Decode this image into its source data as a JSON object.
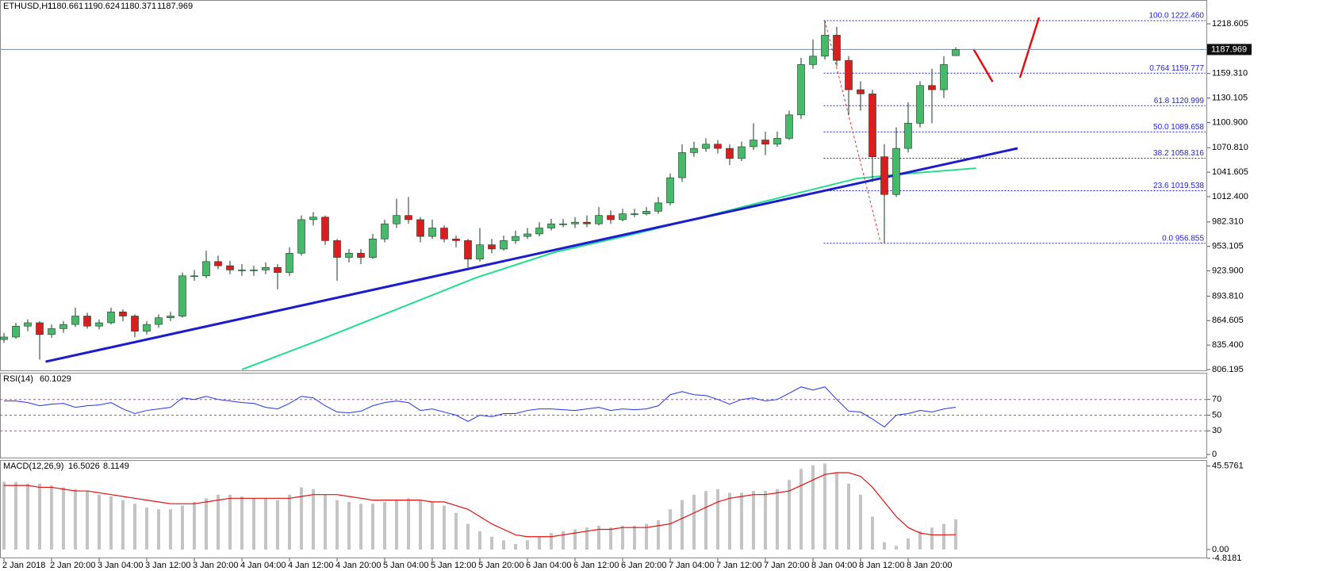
{
  "chart_data": [
    {
      "type": "candlestick",
      "title": "ETHUSD,H1",
      "candles": [
        [
          842,
          850,
          838,
          845
        ],
        [
          845,
          862,
          843,
          858
        ],
        [
          858,
          866,
          852,
          862
        ],
        [
          862,
          864,
          818,
          848
        ],
        [
          848,
          860,
          844,
          855
        ],
        [
          855,
          864,
          850,
          860
        ],
        [
          860,
          880,
          857,
          870
        ],
        [
          870,
          874,
          855,
          858
        ],
        [
          858,
          866,
          854,
          862
        ],
        [
          862,
          880,
          860,
          875
        ],
        [
          875,
          878,
          864,
          870
        ],
        [
          870,
          872,
          845,
          852
        ],
        [
          852,
          864,
          848,
          860
        ],
        [
          860,
          872,
          856,
          868
        ],
        [
          868,
          875,
          864,
          870
        ],
        [
          870,
          922,
          868,
          918
        ],
        [
          918,
          925,
          912,
          918
        ],
        [
          918,
          948,
          915,
          935
        ],
        [
          935,
          942,
          926,
          930
        ],
        [
          930,
          936,
          920,
          925
        ],
        [
          925,
          932,
          918,
          925
        ],
        [
          925,
          930,
          918,
          925
        ],
        [
          925,
          934,
          920,
          928
        ],
        [
          928,
          932,
          902,
          922
        ],
        [
          922,
          952,
          918,
          945
        ],
        [
          945,
          990,
          942,
          985
        ],
        [
          985,
          994,
          978,
          988
        ],
        [
          988,
          990,
          955,
          960
        ],
        [
          960,
          962,
          912,
          940
        ],
        [
          940,
          950,
          934,
          945
        ],
        [
          945,
          950,
          932,
          940
        ],
        [
          940,
          968,
          938,
          962
        ],
        [
          962,
          985,
          958,
          980
        ],
        [
          980,
          1010,
          975,
          990
        ],
        [
          990,
          1012,
          980,
          985
        ],
        [
          985,
          988,
          958,
          965
        ],
        [
          965,
          985,
          962,
          975
        ],
        [
          975,
          978,
          958,
          962
        ],
        [
          962,
          966,
          952,
          960
        ],
        [
          960,
          962,
          928,
          938
        ],
        [
          938,
          975,
          935,
          955
        ],
        [
          955,
          962,
          945,
          950
        ],
        [
          950,
          966,
          948,
          960
        ],
        [
          960,
          972,
          956,
          965
        ],
        [
          965,
          975,
          962,
          968
        ],
        [
          968,
          982,
          965,
          975
        ],
        [
          975,
          986,
          972,
          980
        ],
        [
          980,
          986,
          976,
          980
        ],
        [
          980,
          988,
          975,
          982
        ],
        [
          982,
          990,
          976,
          980
        ],
        [
          980,
          1000,
          978,
          990
        ],
        [
          990,
          996,
          980,
          985
        ],
        [
          985,
          998,
          983,
          992
        ],
        [
          992,
          998,
          988,
          992
        ],
        [
          992,
          1000,
          990,
          995
        ],
        [
          995,
          1012,
          992,
          1005
        ],
        [
          1005,
          1040,
          1002,
          1035
        ],
        [
          1035,
          1075,
          1030,
          1065
        ],
        [
          1065,
          1078,
          1060,
          1070
        ],
        [
          1070,
          1082,
          1066,
          1075
        ],
        [
          1075,
          1080,
          1064,
          1070
        ],
        [
          1070,
          1075,
          1050,
          1058
        ],
        [
          1058,
          1078,
          1055,
          1072
        ],
        [
          1072,
          1100,
          1068,
          1080
        ],
        [
          1080,
          1090,
          1062,
          1075
        ],
        [
          1075,
          1090,
          1072,
          1082
        ],
        [
          1082,
          1115,
          1080,
          1110
        ],
        [
          1110,
          1178,
          1105,
          1170
        ],
        [
          1170,
          1200,
          1165,
          1180
        ],
        [
          1180,
          1222.46,
          1176,
          1205
        ],
        [
          1205,
          1215,
          1168,
          1175
        ],
        [
          1175,
          1180,
          1110,
          1140
        ],
        [
          1140,
          1150,
          1115,
          1135
        ],
        [
          1135,
          1140,
          1030,
          1060
        ],
        [
          1060,
          1075,
          956.855,
          1015
        ],
        [
          1015,
          1095,
          1012,
          1070
        ],
        [
          1070,
          1125,
          1065,
          1100
        ],
        [
          1100,
          1150,
          1095,
          1145
        ],
        [
          1145,
          1165,
          1100,
          1140
        ],
        [
          1140,
          1180,
          1130,
          1170
        ],
        [
          1180.661,
          1190.624,
          1180.371,
          1187.969
        ]
      ],
      "colors": {
        "up": "#48b86a",
        "down": "#d81e1e",
        "wick": "#1a3a22"
      },
      "xlim": [
        -0.3333,
        101.1333
      ],
      "xticks": [
        {
          "value": 0,
          "label": "2 Jan 2018"
        },
        {
          "value": 4,
          "label": "2 Jan 20:00"
        },
        {
          "value": 8,
          "label": "3 Jan 04:00"
        },
        {
          "value": 12,
          "label": "3 Jan 12:00"
        },
        {
          "value": 16,
          "label": "3 Jan 20:00"
        },
        {
          "value": 20,
          "label": "4 Jan 04:00"
        },
        {
          "value": 24,
          "label": "4 Jan 12:00"
        },
        {
          "value": 28,
          "label": "4 Jan 20:00"
        },
        {
          "value": 32,
          "label": "5 Jan 04:00"
        },
        {
          "value": 36,
          "label": "5 Jan 12:00"
        },
        {
          "value": 40,
          "label": "5 Jan 20:00"
        },
        {
          "value": 44,
          "label": "6 Jan 04:00"
        },
        {
          "value": 48,
          "label": "6 Jan 12:00"
        },
        {
          "value": 52,
          "label": "6 Jan 20:00"
        },
        {
          "value": 56,
          "label": "7 Jan 04:00"
        },
        {
          "value": 60,
          "label": "7 Jan 12:00"
        },
        {
          "value": 64,
          "label": "7 Jan 20:00"
        },
        {
          "value": 68,
          "label": "8 Jan 04:00"
        },
        {
          "value": 72,
          "label": "8 Jan 12:00"
        },
        {
          "value": 76,
          "label": "8 Jan 20:00"
        }
      ],
      "ylim": [
        804.3,
        1247
      ],
      "yticks": [
        1218.605,
        {
          "value": 1159.31,
          "label": "1159.310"
        },
        1130.105,
        {
          "value": 1100.9,
          "label": "1100.900"
        },
        {
          "value": 1070.81,
          "label": "1070.810"
        },
        1041.605,
        {
          "value": 1012.4,
          "label": "1012.400"
        },
        {
          "value": 982.31,
          "label": "982.310"
        },
        953.105,
        {
          "value": 923.9,
          "label": "923.900"
        },
        {
          "value": 893.81,
          "label": "893.810"
        },
        864.605,
        {
          "value": 835.4,
          "label": "835.400"
        },
        806.195
      ],
      "trendline": {
        "color": "#1c1ccc",
        "x": [
          3.5,
          85.2
        ],
        "y": [
          815.6,
          1070.1
        ]
      },
      "moving_average": {
        "color": "#22dd8c",
        "x": [
          20,
          26.3,
          33,
          39.7,
          46.3,
          53,
          59.7,
          66.3,
          71.7,
          75,
          81.7
        ],
        "y": [
          806.2,
          840.2,
          878.0,
          915.9,
          946.2,
          967.9,
          991.6,
          1015.2,
          1034.1,
          1038.8,
          1046.4
        ]
      },
      "fibonacci": {
        "color": "#2222dd",
        "x_start": 68.9,
        "levels": [
          {
            "value": 1222.46,
            "label": "100.0  1222.460"
          },
          {
            "value": 1159.777,
            "label": "0.764  1159.777"
          },
          {
            "value": 1120.999,
            "label": "61.8  1120.999"
          },
          {
            "value": 1089.658,
            "label": "50.0  1089.658"
          },
          {
            "value": 1058.316,
            "label": "38.2  1058.316"
          },
          {
            "value": 1019.538,
            "label": "23.6  1019.538"
          },
          {
            "value": 956.855,
            "label": "0.0  956.855"
          }
        ]
      },
      "fib_connector": {
        "color": "#e03030",
        "x": [
          69,
          73.7
        ],
        "y": [
          1222.46,
          956.855
        ]
      },
      "arrows": [
        {
          "color": "#e01010",
          "x": [
            81.5,
            83.1
          ],
          "y": [
            1188.3,
            1149.5
          ]
        },
        {
          "color": "#e01010",
          "x": [
            85.4,
            87
          ],
          "y": [
            1154.3,
            1226.2
          ]
        }
      ]
    },
    {
      "type": "line",
      "name": "RSI(14)",
      "color": "#2233ee",
      "values": [
        68,
        68,
        66,
        62,
        64,
        65,
        60,
        62,
        63,
        66,
        58,
        52,
        56,
        58,
        60,
        72,
        70,
        74,
        70,
        68,
        66,
        65,
        60,
        58,
        65,
        74,
        72,
        62,
        54,
        53,
        55,
        62,
        66,
        68,
        66,
        56,
        58,
        54,
        50,
        42,
        50,
        48,
        52,
        52,
        56,
        58,
        58,
        57,
        56,
        58,
        60,
        56,
        58,
        57,
        58,
        62,
        76,
        80,
        76,
        75,
        70,
        64,
        70,
        72,
        68,
        70,
        78,
        86,
        82,
        86,
        70,
        55,
        54,
        45,
        35,
        50,
        52,
        56,
        54,
        58,
        60.1029
      ],
      "ylim": [
        -5,
        103
      ],
      "yticks": [
        70,
        50,
        30,
        0
      ],
      "levels": [
        70,
        50,
        30
      ],
      "level_color": "#c040c0"
    },
    {
      "type": "macd",
      "name": "MACD(12,26,9)",
      "histogram": {
        "color": "#c4c4c4",
        "values": [
          37,
          37,
          36,
          36,
          35,
          34,
          33,
          32,
          30,
          29,
          27,
          25,
          23,
          22,
          22,
          24,
          26,
          28,
          30,
          30,
          29,
          28,
          28,
          27,
          30,
          34,
          33,
          30,
          27,
          26,
          25,
          25,
          26,
          27,
          28,
          27,
          26,
          24,
          20,
          14,
          10,
          7,
          5,
          3,
          5,
          7,
          9,
          10,
          11,
          12,
          13,
          12,
          13,
          13,
          14,
          16,
          22,
          27,
          30,
          32,
          33,
          31,
          31,
          32,
          32,
          33,
          38,
          44,
          46,
          47,
          42,
          36,
          30,
          18,
          4,
          2,
          6,
          10,
          12,
          14,
          16.5026
        ]
      },
      "signal": {
        "color": "#e01010",
        "values": [
          35,
          35,
          35,
          34,
          34,
          33,
          32,
          32,
          31,
          30,
          29,
          28,
          27,
          26,
          25,
          25,
          25,
          26,
          27,
          28,
          28,
          28,
          28,
          28,
          28,
          29,
          30,
          30,
          30,
          29,
          28,
          27,
          27,
          27,
          27,
          27,
          26,
          26,
          24,
          22,
          18,
          14,
          11,
          8,
          7,
          7,
          7,
          8,
          9,
          10,
          11,
          11,
          12,
          12,
          12,
          13,
          14,
          17,
          20,
          23,
          26,
          28,
          29,
          30,
          30,
          31,
          32,
          35,
          38,
          41,
          42,
          42,
          40,
          34,
          26,
          18,
          12,
          9,
          8,
          8,
          8.1149
        ]
      },
      "ylim": [
        -4.8181,
        48.5
      ],
      "yticks": [
        45.5761,
        {
          "value": 0,
          "label": "0.00"
        },
        -4.8181
      ]
    }
  ]
}
